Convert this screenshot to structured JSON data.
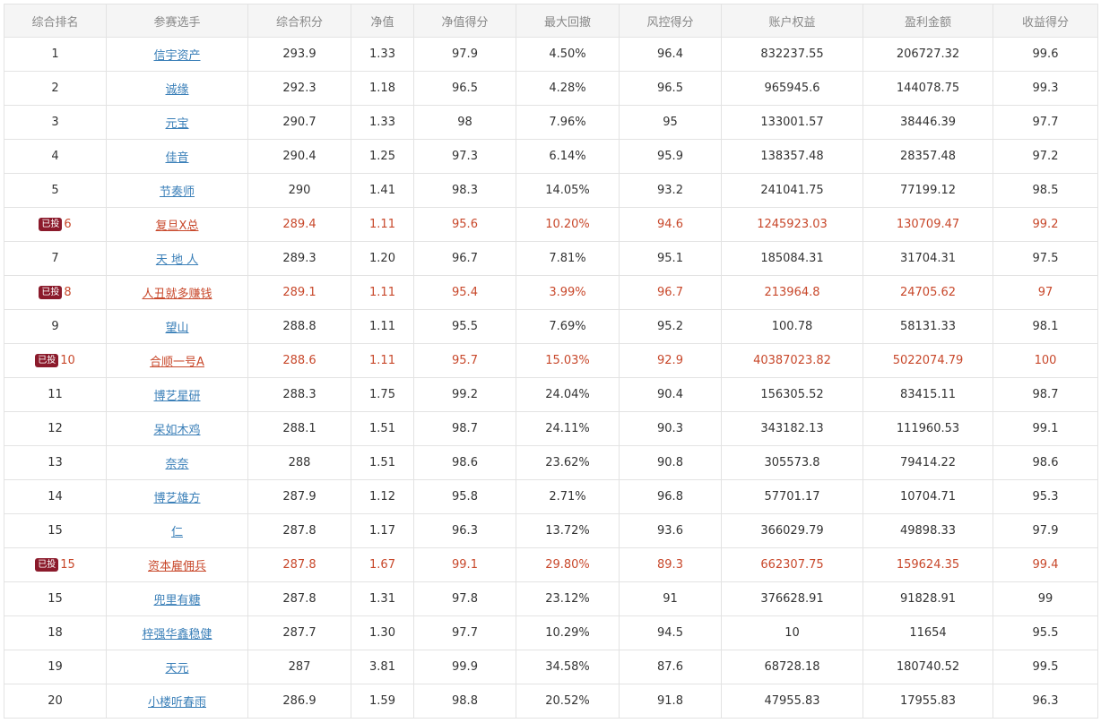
{
  "headers": [
    "综合排名",
    "参赛选手",
    "综合积分",
    "净值",
    "净值得分",
    "最大回撤",
    "风控得分",
    "账户权益",
    "盈利金额",
    "收益得分"
  ],
  "badge_label": "已投",
  "rows": [
    {
      "rank": "1",
      "badge": "",
      "name": "信宇资产",
      "score": "293.9",
      "nav": "1.33",
      "nav_score": "97.9",
      "drawdown": "4.50%",
      "risk_score": "96.4",
      "equity": "832237.55",
      "profit": "206727.32",
      "return_score": "99.6"
    },
    {
      "rank": "2",
      "badge": "",
      "name": "诚缘",
      "score": "292.3",
      "nav": "1.18",
      "nav_score": "96.5",
      "drawdown": "4.28%",
      "risk_score": "96.5",
      "equity": "965945.6",
      "profit": "144078.75",
      "return_score": "99.3"
    },
    {
      "rank": "3",
      "badge": "",
      "name": "元宝",
      "score": "290.7",
      "nav": "1.33",
      "nav_score": "98",
      "drawdown": "7.96%",
      "risk_score": "95",
      "equity": "133001.57",
      "profit": "38446.39",
      "return_score": "97.7"
    },
    {
      "rank": "4",
      "badge": "",
      "name": "佳音",
      "score": "290.4",
      "nav": "1.25",
      "nav_score": "97.3",
      "drawdown": "6.14%",
      "risk_score": "95.9",
      "equity": "138357.48",
      "profit": "28357.48",
      "return_score": "97.2"
    },
    {
      "rank": "5",
      "badge": "",
      "name": "节奏师",
      "score": "290",
      "nav": "1.41",
      "nav_score": "98.3",
      "drawdown": "14.05%",
      "risk_score": "93.2",
      "equity": "241041.75",
      "profit": "77199.12",
      "return_score": "98.5"
    },
    {
      "rank": "6",
      "badge": "已投",
      "name": "复旦X总",
      "score": "289.4",
      "nav": "1.11",
      "nav_score": "95.6",
      "drawdown": "10.20%",
      "risk_score": "94.6",
      "equity": "1245923.03",
      "profit": "130709.47",
      "return_score": "99.2"
    },
    {
      "rank": "7",
      "badge": "",
      "name": "天 地 人",
      "score": "289.3",
      "nav": "1.20",
      "nav_score": "96.7",
      "drawdown": "7.81%",
      "risk_score": "95.1",
      "equity": "185084.31",
      "profit": "31704.31",
      "return_score": "97.5"
    },
    {
      "rank": "8",
      "badge": "已投",
      "name": "人丑就多赚钱",
      "score": "289.1",
      "nav": "1.11",
      "nav_score": "95.4",
      "drawdown": "3.99%",
      "risk_score": "96.7",
      "equity": "213964.8",
      "profit": "24705.62",
      "return_score": "97"
    },
    {
      "rank": "9",
      "badge": "",
      "name": "望山",
      "score": "288.8",
      "nav": "1.11",
      "nav_score": "95.5",
      "drawdown": "7.69%",
      "risk_score": "95.2",
      "equity": "100.78",
      "profit": "58131.33",
      "return_score": "98.1"
    },
    {
      "rank": "10",
      "badge": "已投",
      "name": "合顺一号A",
      "score": "288.6",
      "nav": "1.11",
      "nav_score": "95.7",
      "drawdown": "15.03%",
      "risk_score": "92.9",
      "equity": "40387023.82",
      "profit": "5022074.79",
      "return_score": "100"
    },
    {
      "rank": "11",
      "badge": "",
      "name": "博艺星研",
      "score": "288.3",
      "nav": "1.75",
      "nav_score": "99.2",
      "drawdown": "24.04%",
      "risk_score": "90.4",
      "equity": "156305.52",
      "profit": "83415.11",
      "return_score": "98.7"
    },
    {
      "rank": "12",
      "badge": "",
      "name": "呆如木鸡",
      "score": "288.1",
      "nav": "1.51",
      "nav_score": "98.7",
      "drawdown": "24.11%",
      "risk_score": "90.3",
      "equity": "343182.13",
      "profit": "111960.53",
      "return_score": "99.1"
    },
    {
      "rank": "13",
      "badge": "",
      "name": "奈奈",
      "score": "288",
      "nav": "1.51",
      "nav_score": "98.6",
      "drawdown": "23.62%",
      "risk_score": "90.8",
      "equity": "305573.8",
      "profit": "79414.22",
      "return_score": "98.6"
    },
    {
      "rank": "14",
      "badge": "",
      "name": "博艺雄方",
      "score": "287.9",
      "nav": "1.12",
      "nav_score": "95.8",
      "drawdown": "2.71%",
      "risk_score": "96.8",
      "equity": "57701.17",
      "profit": "10704.71",
      "return_score": "95.3"
    },
    {
      "rank": "15",
      "badge": "",
      "name": "仁",
      "score": "287.8",
      "nav": "1.17",
      "nav_score": "96.3",
      "drawdown": "13.72%",
      "risk_score": "93.6",
      "equity": "366029.79",
      "profit": "49898.33",
      "return_score": "97.9"
    },
    {
      "rank": "15",
      "badge": "已投",
      "name": "资本雇佣兵",
      "score": "287.8",
      "nav": "1.67",
      "nav_score": "99.1",
      "drawdown": "29.80%",
      "risk_score": "89.3",
      "equity": "662307.75",
      "profit": "159624.35",
      "return_score": "99.4"
    },
    {
      "rank": "15",
      "badge": "",
      "name": "兜里有糖",
      "score": "287.8",
      "nav": "1.31",
      "nav_score": "97.8",
      "drawdown": "23.12%",
      "risk_score": "91",
      "equity": "376628.91",
      "profit": "91828.91",
      "return_score": "99"
    },
    {
      "rank": "18",
      "badge": "",
      "name": "梓强华鑫稳健",
      "score": "287.7",
      "nav": "1.30",
      "nav_score": "97.7",
      "drawdown": "10.29%",
      "risk_score": "94.5",
      "equity": "10",
      "profit": "11654",
      "return_score": "95.5"
    },
    {
      "rank": "19",
      "badge": "",
      "name": "天元",
      "score": "287",
      "nav": "3.81",
      "nav_score": "99.9",
      "drawdown": "34.58%",
      "risk_score": "87.6",
      "equity": "68728.18",
      "profit": "180740.52",
      "return_score": "99.5"
    },
    {
      "rank": "20",
      "badge": "",
      "name": "小楼听春雨",
      "score": "286.9",
      "nav": "1.59",
      "nav_score": "98.8",
      "drawdown": "20.52%",
      "risk_score": "91.8",
      "equity": "47955.83",
      "profit": "17955.83",
      "return_score": "96.3"
    }
  ],
  "colors": {
    "header_bg": "#f5f5f5",
    "header_text": "#888888",
    "link": "#3a7fb8",
    "highlight_text": "#c8482b",
    "badge_bg": "#8b1a2b",
    "border": "#e3e3e3"
  }
}
